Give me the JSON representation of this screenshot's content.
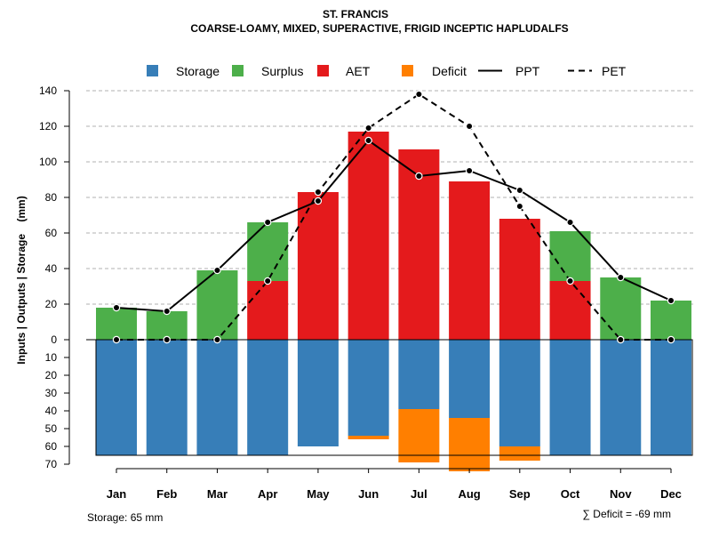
{
  "chart_data": {
    "type": "bar",
    "title": "ST. FRANCIS",
    "subtitle": "COARSE-LOAMY, MIXED, SUPERACTIVE, FRIGID INCEPTIC HAPLUDALFS",
    "ylabel": "Inputs | Outputs | Storage    (mm)",
    "categories": [
      "Jan",
      "Feb",
      "Mar",
      "Apr",
      "May",
      "Jun",
      "Jul",
      "Aug",
      "Sep",
      "Oct",
      "Nov",
      "Dec"
    ],
    "upper_ylim": [
      0,
      140
    ],
    "upper_ticks": [
      0,
      20,
      40,
      60,
      80,
      100,
      120,
      140
    ],
    "lower_ylim": [
      0,
      70
    ],
    "lower_ticks": [
      10,
      20,
      30,
      40,
      50,
      60,
      70
    ],
    "legend": [
      {
        "key": "storage",
        "label": "Storage",
        "kind": "box",
        "color": "#377EB8"
      },
      {
        "key": "surplus",
        "label": "Surplus",
        "kind": "box",
        "color": "#4DAF4A"
      },
      {
        "key": "aet",
        "label": "AET",
        "kind": "box",
        "color": "#E41A1C"
      },
      {
        "key": "deficit",
        "label": "Deficit",
        "kind": "box",
        "color": "#FF7F00"
      },
      {
        "key": "ppt",
        "label": "PPT",
        "kind": "solid",
        "color": "#000000"
      },
      {
        "key": "pet",
        "label": "PET",
        "kind": "dashed",
        "color": "#000000"
      }
    ],
    "series": [
      {
        "name": "AET",
        "values": [
          0,
          0,
          0,
          33,
          83,
          117,
          107,
          89,
          68,
          33,
          0,
          0
        ]
      },
      {
        "name": "Surplus",
        "values": [
          18,
          16,
          39,
          33,
          0,
          0,
          0,
          0,
          0,
          28,
          35,
          22
        ]
      },
      {
        "name": "Storage",
        "values": [
          65,
          65,
          65,
          65,
          60,
          54,
          39,
          44,
          60,
          65,
          65,
          65
        ]
      },
      {
        "name": "Deficit",
        "values": [
          0,
          0,
          0,
          0,
          0,
          2,
          30,
          30,
          8,
          0,
          0,
          0
        ]
      },
      {
        "name": "PPT",
        "values": [
          18,
          16,
          39,
          66,
          78,
          112,
          92,
          95,
          84,
          66,
          35,
          22
        ]
      },
      {
        "name": "PET",
        "values": [
          0,
          0,
          0,
          33,
          83,
          119,
          138,
          120,
          75,
          33,
          0,
          0
        ]
      }
    ],
    "storage_capacity": 65,
    "footer_left": "Storage: 65 mm",
    "footer_right": "∑ Deficit = -69 mm"
  }
}
